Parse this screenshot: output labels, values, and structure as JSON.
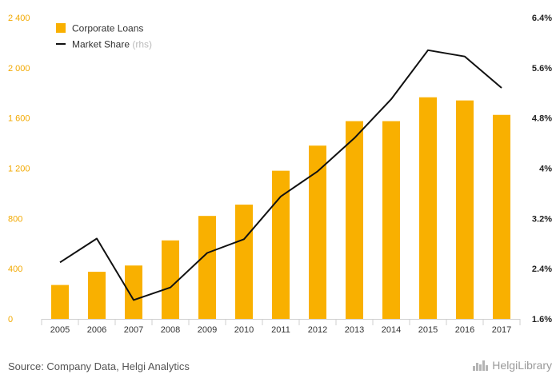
{
  "chart_data": {
    "type": "bar",
    "categories": [
      "2005",
      "2006",
      "2007",
      "2008",
      "2009",
      "2010",
      "2011",
      "2012",
      "2013",
      "2014",
      "2015",
      "2016",
      "2017"
    ],
    "series": [
      {
        "name": "Corporate Loans",
        "type": "bar",
        "axis": "left",
        "color": "#f9b000",
        "values": [
          270,
          375,
          425,
          625,
          820,
          910,
          1180,
          1380,
          1575,
          1575,
          1765,
          1740,
          1625
        ]
      },
      {
        "name": "Market Share",
        "name_suffix": "(rhs)",
        "type": "line",
        "axis": "right",
        "color": "#111111",
        "values": [
          2.5,
          2.88,
          1.9,
          2.1,
          2.65,
          2.87,
          3.55,
          3.95,
          4.48,
          5.1,
          5.88,
          5.78,
          5.28
        ]
      }
    ],
    "y_left": {
      "ylim": [
        0,
        2400
      ],
      "ticks": [
        0,
        400,
        800,
        1200,
        1600,
        2000,
        2400
      ],
      "tick_labels": [
        "0",
        "400",
        "800",
        "1 200",
        "1 600",
        "2 000",
        "2 400"
      ]
    },
    "y_right": {
      "ylim": [
        1.6,
        6.4
      ],
      "ticks": [
        1.6,
        2.4,
        3.2,
        4.0,
        4.8,
        5.6,
        6.4
      ],
      "tick_labels": [
        "1.6%",
        "2.4%",
        "3.2%",
        "4%",
        "4.8%",
        "5.6%",
        "6.4%"
      ]
    },
    "grid": "none",
    "legend_position": "top-left"
  },
  "footer": {
    "source": "Source: Company Data, Helgi Analytics",
    "brand": "HelgiLibrary",
    "brand_icon": "library-bars-icon"
  }
}
